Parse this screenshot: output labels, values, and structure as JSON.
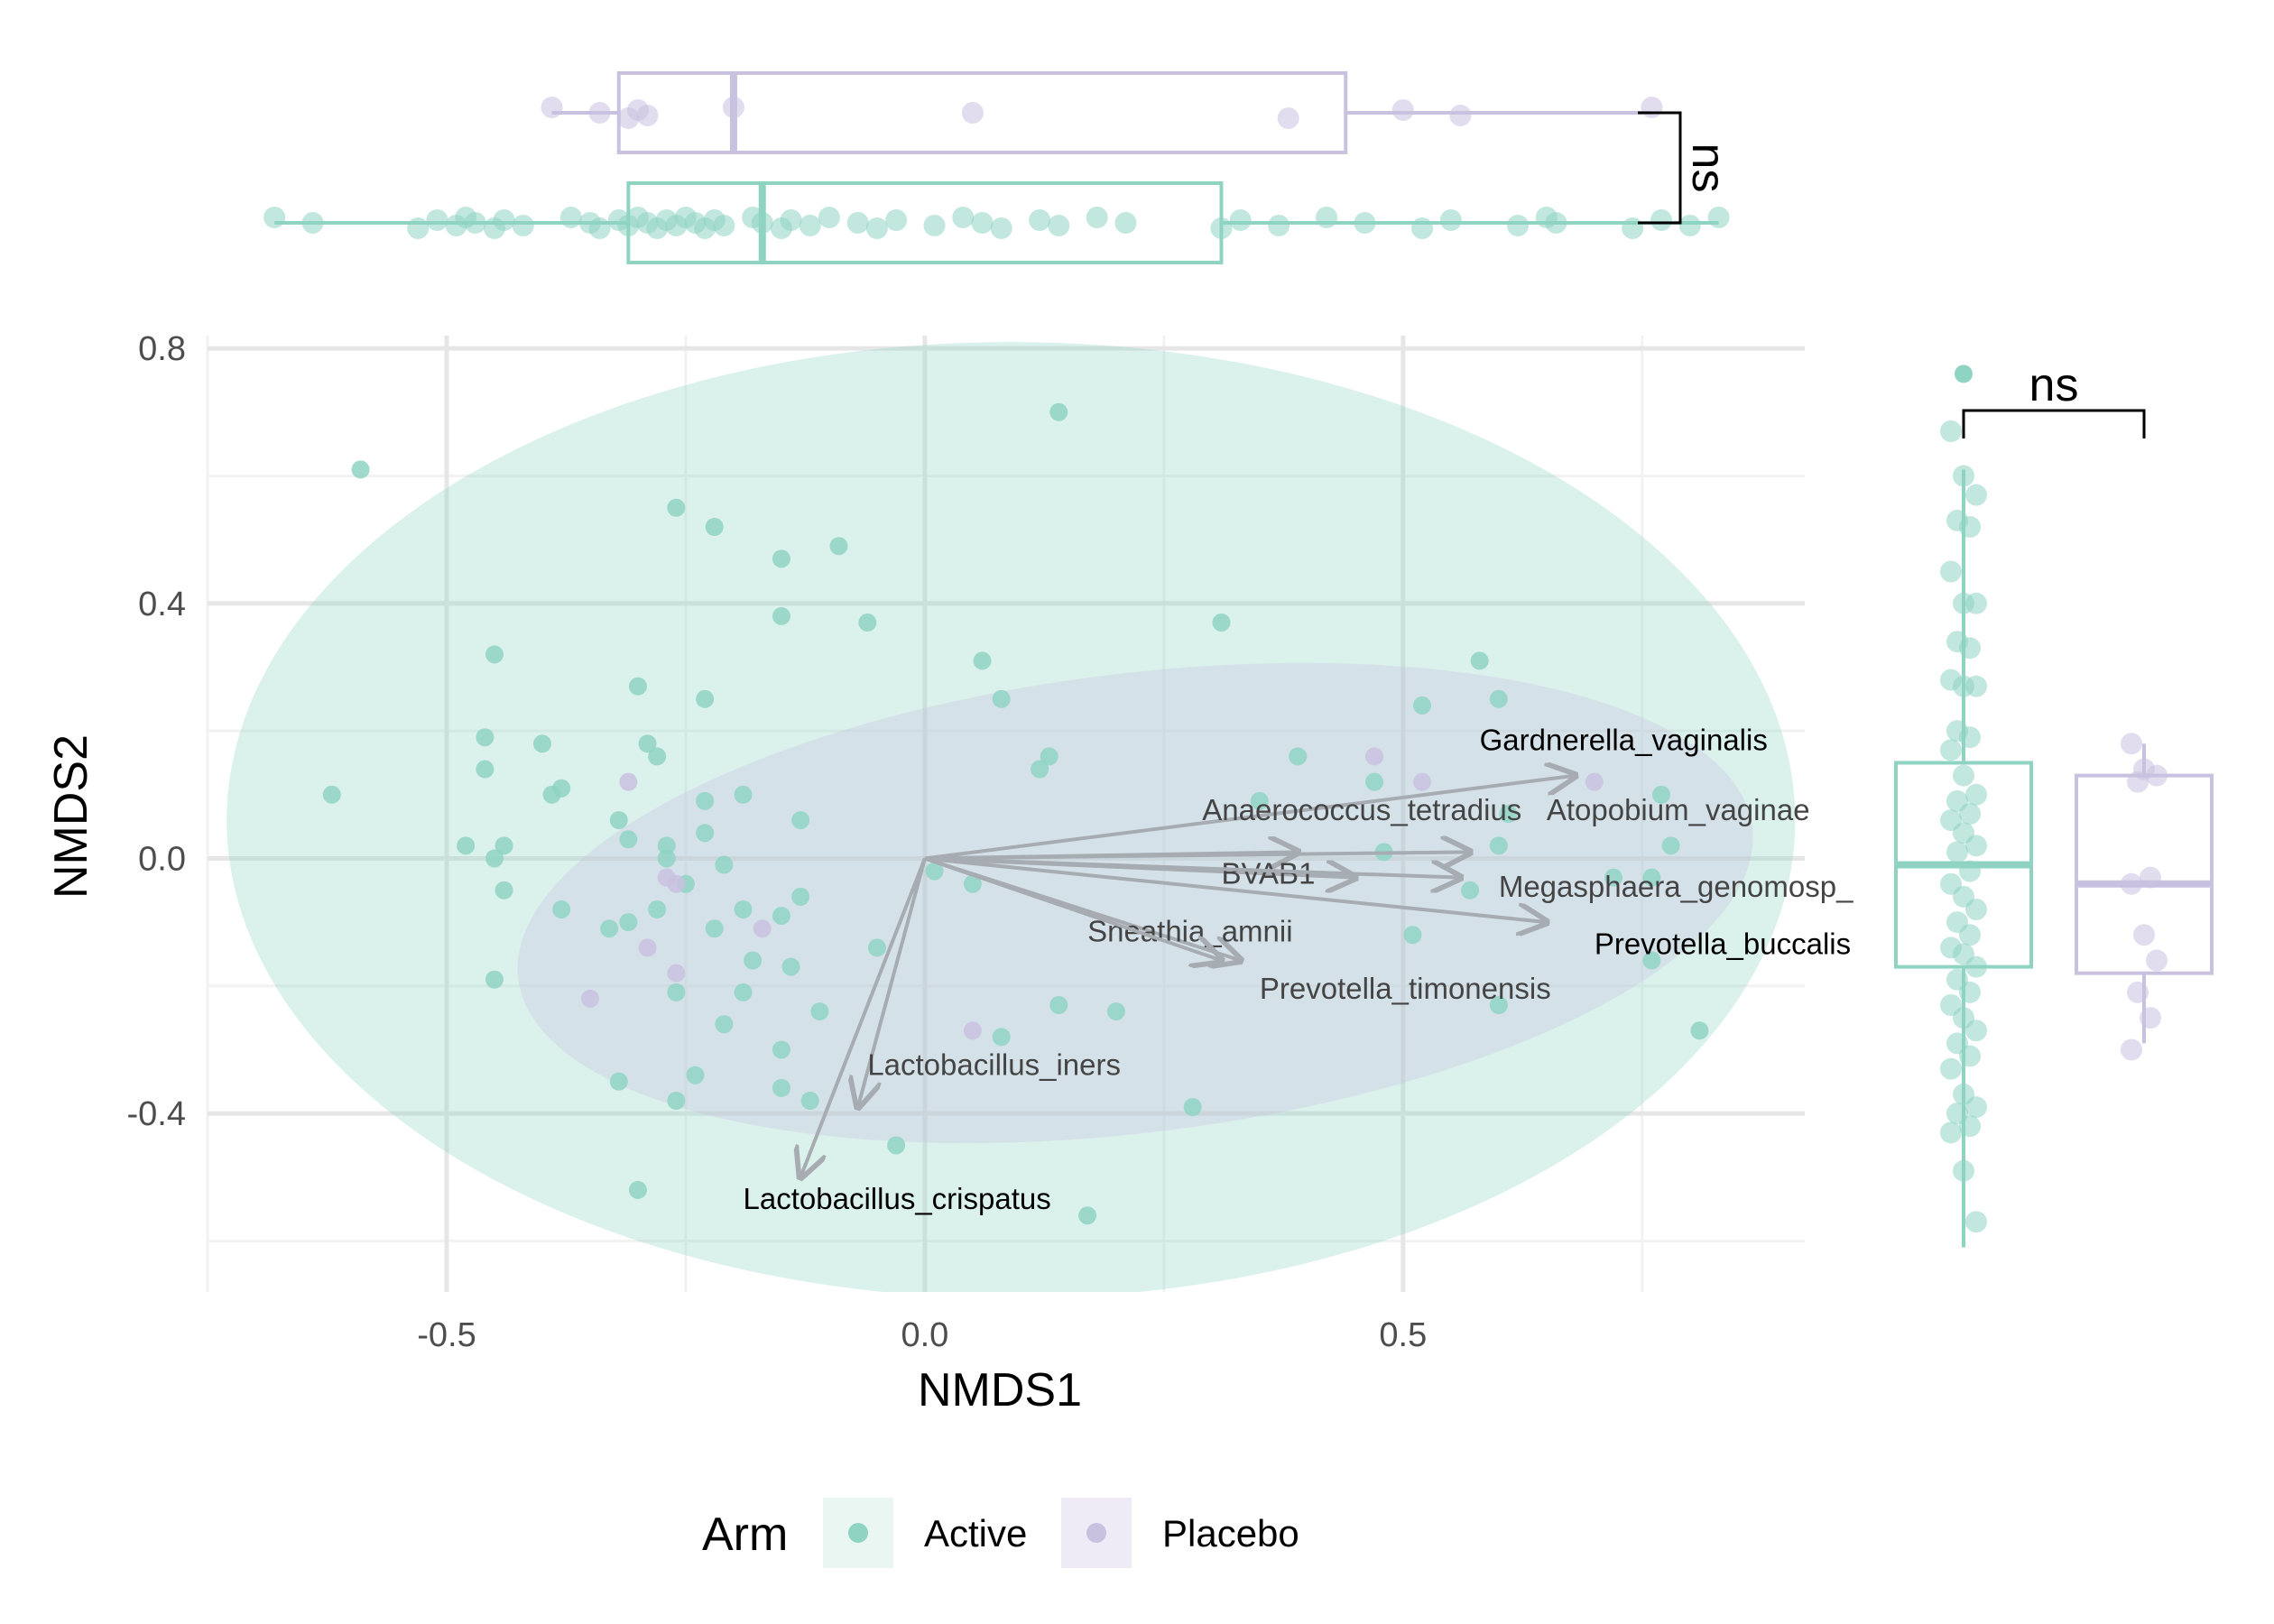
{
  "chart_data": {
    "type": "scatter",
    "title": "",
    "xlabel": "NMDS1",
    "ylabel": "NMDS2",
    "xlim": [
      -0.75,
      0.92
    ],
    "ylim": [
      -0.68,
      0.82
    ],
    "grid": true,
    "x_ticks": [
      {
        "v": -0.5,
        "label": "-0.5"
      },
      {
        "v": 0.0,
        "label": "0.0"
      },
      {
        "v": 0.5,
        "label": "0.5"
      }
    ],
    "y_ticks": [
      {
        "v": 0.8,
        "label": "0.8"
      },
      {
        "v": 0.4,
        "label": "0.4"
      },
      {
        "v": 0.0,
        "label": "0.0"
      },
      {
        "v": -0.4,
        "label": "-0.4"
      }
    ],
    "legend": {
      "title": "Arm",
      "placement": "bottom"
    },
    "series": [
      {
        "name": "Active",
        "color": "#8fd4c3",
        "points": [
          [
            -0.59,
            0.61
          ],
          [
            0.14,
            0.7
          ],
          [
            -0.26,
            0.55
          ],
          [
            -0.22,
            0.52
          ],
          [
            -0.15,
            0.47
          ],
          [
            -0.09,
            0.49
          ],
          [
            -0.15,
            0.38
          ],
          [
            -0.06,
            0.37
          ],
          [
            0.31,
            0.37
          ],
          [
            -0.45,
            0.32
          ],
          [
            0.06,
            0.31
          ],
          [
            0.58,
            0.31
          ],
          [
            -0.3,
            0.27
          ],
          [
            -0.23,
            0.25
          ],
          [
            0.08,
            0.25
          ],
          [
            0.6,
            0.25
          ],
          [
            0.52,
            0.24
          ],
          [
            -0.46,
            0.19
          ],
          [
            -0.29,
            0.18
          ],
          [
            -0.4,
            0.18
          ],
          [
            0.13,
            0.16
          ],
          [
            0.39,
            0.16
          ],
          [
            -0.46,
            0.14
          ],
          [
            -0.28,
            0.16
          ],
          [
            0.12,
            0.14
          ],
          [
            -0.62,
            0.1
          ],
          [
            -0.38,
            0.11
          ],
          [
            -0.39,
            0.1
          ],
          [
            -0.19,
            0.1
          ],
          [
            0.47,
            0.12
          ],
          [
            -0.23,
            0.09
          ],
          [
            0.35,
            0.09
          ],
          [
            0.77,
            0.1
          ],
          [
            -0.32,
            0.06
          ],
          [
            -0.13,
            0.06
          ],
          [
            0.61,
            0.07
          ],
          [
            -0.48,
            0.02
          ],
          [
            -0.44,
            0.02
          ],
          [
            -0.31,
            0.03
          ],
          [
            -0.23,
            0.04
          ],
          [
            -0.27,
            0.02
          ],
          [
            0.48,
            0.01
          ],
          [
            0.6,
            0.02
          ],
          [
            0.78,
            0.02
          ],
          [
            -0.45,
            0.0
          ],
          [
            -0.27,
            0.0
          ],
          [
            -0.21,
            -0.01
          ],
          [
            0.01,
            -0.02
          ],
          [
            0.72,
            -0.03
          ],
          [
            0.76,
            -0.03
          ],
          [
            -0.44,
            -0.05
          ],
          [
            -0.25,
            -0.04
          ],
          [
            0.05,
            -0.04
          ],
          [
            -0.13,
            -0.06
          ],
          [
            0.57,
            -0.05
          ],
          [
            -0.38,
            -0.08
          ],
          [
            -0.28,
            -0.08
          ],
          [
            -0.19,
            -0.08
          ],
          [
            -0.15,
            -0.09
          ],
          [
            -0.33,
            -0.11
          ],
          [
            -0.31,
            -0.1
          ],
          [
            -0.22,
            -0.11
          ],
          [
            0.51,
            -0.12
          ],
          [
            -0.05,
            -0.14
          ],
          [
            -0.18,
            -0.16
          ],
          [
            -0.14,
            -0.17
          ],
          [
            -0.45,
            -0.19
          ],
          [
            0.76,
            -0.16
          ],
          [
            -0.26,
            -0.21
          ],
          [
            -0.19,
            -0.21
          ],
          [
            0.14,
            -0.23
          ],
          [
            0.6,
            -0.23
          ],
          [
            -0.11,
            -0.24
          ],
          [
            0.2,
            -0.24
          ],
          [
            -0.21,
            -0.26
          ],
          [
            0.81,
            -0.27
          ],
          [
            0.08,
            -0.28
          ],
          [
            -0.15,
            -0.3
          ],
          [
            -0.24,
            -0.34
          ],
          [
            -0.15,
            -0.36
          ],
          [
            -0.32,
            -0.35
          ],
          [
            -0.26,
            -0.38
          ],
          [
            -0.12,
            -0.38
          ],
          [
            0.28,
            -0.39
          ],
          [
            -0.03,
            -0.45
          ],
          [
            -0.3,
            -0.52
          ],
          [
            0.17,
            -0.56
          ]
        ]
      },
      {
        "name": "Placebo",
        "color": "#c9c1e0",
        "points": [
          [
            0.7,
            0.12
          ],
          [
            0.47,
            0.16
          ],
          [
            0.52,
            0.12
          ],
          [
            -0.31,
            0.12
          ],
          [
            -0.26,
            -0.04
          ],
          [
            -0.27,
            -0.03
          ],
          [
            -0.17,
            -0.11
          ],
          [
            -0.29,
            -0.14
          ],
          [
            -0.26,
            -0.18
          ],
          [
            -0.35,
            -0.22
          ],
          [
            0.05,
            -0.27
          ]
        ]
      }
    ],
    "ellipses": [
      {
        "series": "Active",
        "cx": 0.09,
        "cy": 0.06,
        "rx": 0.82,
        "ry": 0.75,
        "angle_deg": 0,
        "color": "#8fd4c3"
      },
      {
        "series": "Placebo",
        "cx": 0.22,
        "cy": -0.07,
        "rx": 0.65,
        "ry": 0.36,
        "angle_deg": 7,
        "color": "#c9c1e0"
      }
    ],
    "arrows": [
      {
        "label": "Gardnerella_vaginalis",
        "x": 0.68,
        "y": 0.13,
        "lx": 0.58,
        "ly": 0.17,
        "color": "#000000"
      },
      {
        "label": "Anaerococcus_tetradius",
        "x": 0.39,
        "y": 0.01,
        "lx": 0.29,
        "ly": 0.06,
        "color": "#444444"
      },
      {
        "label": "Atopobium_vaginae",
        "x": 0.57,
        "y": 0.01,
        "lx": 0.65,
        "ly": 0.06,
        "color": "#444444"
      },
      {
        "label": "BVAB1",
        "x": 0.45,
        "y": -0.03,
        "lx": 0.31,
        "ly": -0.04,
        "color": "#444444"
      },
      {
        "label": "Megasphaera_genomosp_",
        "x": 0.56,
        "y": -0.03,
        "lx": 0.6,
        "ly": -0.06,
        "color": "#444444"
      },
      {
        "label": "Prevotella_buccalis",
        "x": 0.65,
        "y": -0.1,
        "lx": 0.7,
        "ly": -0.15,
        "color": "#000000"
      },
      {
        "label": "Sneathia_amnii",
        "x": 0.33,
        "y": -0.16,
        "lx": 0.17,
        "ly": -0.13,
        "color": "#444444"
      },
      {
        "label": "Prevotella_timonensis",
        "x": 0.31,
        "y": -0.16,
        "lx": 0.35,
        "ly": -0.22,
        "color": "#444444"
      },
      {
        "label": "Lactobacillus_iners",
        "x": -0.07,
        "y": -0.39,
        "lx": -0.06,
        "ly": -0.34,
        "color": "#444444"
      },
      {
        "label": "Lactobacillus_crispatus",
        "x": -0.13,
        "y": -0.5,
        "lx": -0.19,
        "ly": -0.55,
        "color": "#000000"
      }
    ],
    "marginal_x": {
      "test_label": "ns",
      "boxes": [
        {
          "name": "Placebo",
          "color": "#c9c1e0",
          "min": -0.39,
          "q1": -0.32,
          "median": -0.2,
          "q3": 0.44,
          "max": 0.76,
          "points": [
            -0.39,
            -0.34,
            -0.31,
            -0.3,
            -0.29,
            -0.2,
            0.05,
            0.38,
            0.5,
            0.56,
            0.76
          ]
        },
        {
          "name": "Active",
          "color": "#8fd4c3",
          "min": -0.68,
          "q1": -0.31,
          "median": -0.17,
          "q3": 0.31,
          "max": 0.83,
          "points": [
            -0.68,
            -0.64,
            -0.53,
            -0.51,
            -0.49,
            -0.48,
            -0.47,
            -0.45,
            -0.44,
            -0.42,
            -0.37,
            -0.35,
            -0.34,
            -0.32,
            -0.31,
            -0.3,
            -0.29,
            -0.28,
            -0.27,
            -0.26,
            -0.25,
            -0.24,
            -0.23,
            -0.22,
            -0.21,
            -0.18,
            -0.17,
            -0.15,
            -0.14,
            -0.12,
            -0.1,
            -0.07,
            -0.05,
            -0.03,
            0.01,
            0.04,
            0.06,
            0.08,
            0.12,
            0.14,
            0.18,
            0.21,
            0.31,
            0.33,
            0.37,
            0.42,
            0.46,
            0.52,
            0.55,
            0.62,
            0.65,
            0.66,
            0.74,
            0.77,
            0.8,
            0.83
          ]
        }
      ]
    },
    "marginal_y": {
      "test_label": "ns",
      "boxes": [
        {
          "name": "Active",
          "color": "#8fd4c3",
          "min": -0.61,
          "q1": -0.17,
          "median": -0.01,
          "q3": 0.15,
          "max": 0.61,
          "outliers": [
            0.76
          ],
          "points": [
            0.67,
            0.6,
            0.57,
            0.53,
            0.52,
            0.45,
            0.4,
            0.4,
            0.34,
            0.33,
            0.28,
            0.27,
            0.27,
            0.2,
            0.19,
            0.17,
            0.13,
            0.1,
            0.09,
            0.07,
            0.06,
            0.04,
            0.02,
            0.01,
            -0.02,
            -0.04,
            -0.06,
            -0.08,
            -0.1,
            -0.12,
            -0.14,
            -0.15,
            -0.17,
            -0.19,
            -0.21,
            -0.23,
            -0.25,
            -0.27,
            -0.29,
            -0.31,
            -0.33,
            -0.37,
            -0.39,
            -0.4,
            -0.42,
            -0.43,
            -0.49,
            -0.57
          ]
        },
        {
          "name": "Placebo",
          "color": "#c9c1e0",
          "min": -0.29,
          "q1": -0.18,
          "median": -0.04,
          "q3": 0.13,
          "max": 0.18,
          "points": [
            0.18,
            0.14,
            0.13,
            0.12,
            -0.03,
            -0.04,
            -0.12,
            -0.16,
            -0.21,
            -0.25,
            -0.3
          ]
        }
      ]
    }
  }
}
